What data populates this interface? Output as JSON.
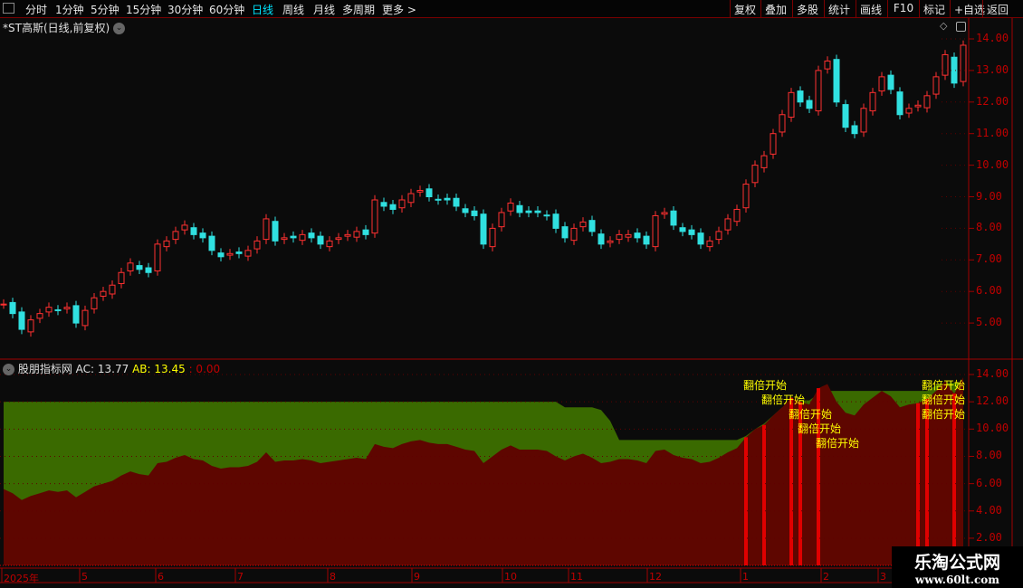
{
  "toolbar": {
    "periods": [
      "分时",
      "1分钟",
      "5分钟",
      "15分钟",
      "30分钟",
      "60分钟",
      "日线",
      "周线",
      "月线",
      "多周期",
      "更多 >"
    ],
    "active": "日线",
    "right": [
      "复权",
      "叠加",
      "多股",
      "统计",
      "画线",
      "F10",
      "标记",
      "+自选",
      "返回"
    ]
  },
  "title": "*ST高斯(日线,前复权)",
  "indicator": {
    "name": "股朋指标网",
    "ac": "AC: 13.77",
    "ab": "AB: 13.45",
    "extra": ": 0.00",
    "signal_label": "翻倍开始"
  },
  "main_axis": [
    "14.00",
    "13.00",
    "12.00",
    "11.00",
    "10.00",
    "9.00",
    "8.00",
    "7.00",
    "6.00",
    "5.00"
  ],
  "sub_axis": [
    "14.00",
    "12.00",
    "10.00",
    "8.00",
    "6.00",
    "4.00",
    "2.00"
  ],
  "months": [
    "2025年",
    "5",
    "6",
    "7",
    "8",
    "9",
    "10",
    "11",
    "12",
    "1",
    "2",
    "3"
  ],
  "colors": {
    "up": "#ff3030",
    "down": "#30e0e0",
    "ac_fill": "#5e0600",
    "ab_fill": "#3a6a00",
    "signal": "#e00000",
    "label": "#ffff00",
    "axis": "#c00000"
  },
  "logo": {
    "name": "乐淘公式网",
    "url": "www.60lt.com"
  },
  "chart_data": {
    "type": "candlestick",
    "ylim": [
      4.5,
      14.2
    ],
    "closes": [
      5.6,
      5.3,
      4.8,
      5.1,
      5.3,
      5.5,
      5.4,
      5.5,
      5.0,
      5.4,
      5.8,
      6.0,
      6.2,
      6.6,
      6.9,
      6.7,
      6.6,
      7.5,
      7.6,
      7.9,
      8.1,
      7.8,
      7.7,
      7.3,
      7.1,
      7.2,
      7.2,
      7.3,
      7.6,
      8.3,
      7.6,
      7.7,
      7.7,
      7.8,
      7.7,
      7.5,
      7.6,
      7.7,
      7.8,
      7.9,
      7.8,
      8.9,
      8.7,
      8.6,
      8.9,
      9.1,
      9.2,
      9.0,
      8.9,
      8.9,
      8.7,
      8.5,
      8.4,
      7.5,
      8.0,
      8.5,
      8.8,
      8.5,
      8.5,
      8.5,
      8.4,
      8.0,
      7.7,
      8.0,
      8.2,
      7.9,
      7.5,
      7.6,
      7.8,
      7.8,
      7.7,
      7.5,
      8.4,
      8.5,
      8.1,
      7.9,
      7.8,
      7.5,
      7.6,
      7.9,
      8.3,
      8.6,
      9.4,
      10.0,
      10.3,
      11.0,
      11.6,
      12.3,
      12.0,
      11.8,
      13.0,
      13.3,
      12.0,
      11.2,
      11.0,
      11.8,
      12.3,
      12.8,
      12.4,
      11.6,
      11.8,
      11.9,
      12.2,
      12.8,
      13.5,
      12.6,
      13.8
    ],
    "ab": [
      12,
      12,
      12,
      12,
      12,
      12,
      12,
      12,
      12,
      12,
      12,
      12,
      12,
      12,
      12,
      12,
      12,
      12,
      12,
      12,
      12,
      12,
      12,
      12,
      12,
      12,
      12,
      12,
      12,
      12,
      12,
      12,
      12,
      12,
      12,
      12,
      12,
      12,
      12,
      12,
      12,
      12,
      12,
      12,
      12,
      12,
      12,
      12,
      12,
      12,
      12,
      12,
      12,
      12,
      12,
      12,
      12,
      12,
      12,
      12,
      12,
      12,
      11.6,
      11.6,
      11.6,
      11.6,
      11.4,
      10.6,
      9.2,
      9.2,
      9.2,
      9.2,
      9.2,
      9.2,
      9.2,
      9.2,
      9.2,
      9.2,
      9.2,
      9.2,
      9.2,
      9.2,
      9.5,
      10.0,
      10.4,
      11.0,
      11.6,
      12.1,
      12.1,
      12.1,
      12.6,
      12.8,
      12.8,
      12.8,
      12.8,
      12.8,
      12.8,
      12.8,
      12.8,
      12.8,
      12.8,
      12.8,
      12.8,
      13.2,
      13.4,
      13.4,
      13.45
    ],
    "signal_bars": [
      82,
      84,
      87,
      88,
      90,
      101,
      102,
      105
    ]
  }
}
